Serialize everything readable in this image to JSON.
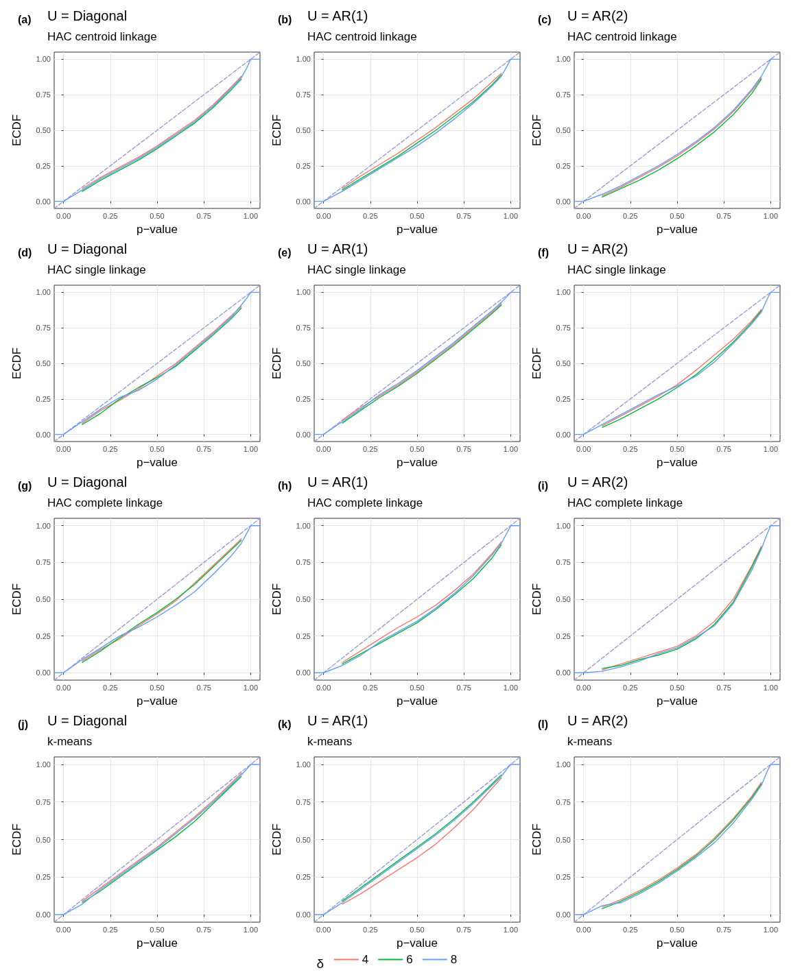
{
  "chart_data": [
    {
      "type": "line",
      "title": "U = Diagonal",
      "subtitle": "HAC centroid linkage",
      "annotations": [
        "(a)"
      ],
      "xlabel": "p−value",
      "ylabel": "ECDF",
      "xlim": [
        -0.05,
        1.05
      ],
      "ylim": [
        -0.05,
        1.05
      ],
      "xticks": [
        {
          "value": 0,
          "label": "0.00"
        },
        {
          "value": 0.25,
          "label": "0.25"
        },
        {
          "value": 0.5,
          "label": "0.50"
        },
        {
          "value": 0.75,
          "label": "0.75"
        },
        {
          "value": 1,
          "label": "1.00"
        }
      ],
      "yticks": [
        {
          "value": 0,
          "label": "0.00"
        },
        {
          "value": 0.25,
          "label": "0.25"
        },
        {
          "value": 0.5,
          "label": "0.50"
        },
        {
          "value": 0.75,
          "label": "0.75"
        },
        {
          "value": 1,
          "label": "1.00"
        }
      ],
      "grid": true,
      "marker": "none",
      "line_style": "solid",
      "x": [
        -0.05,
        0,
        0.1,
        0.2,
        0.3,
        0.4,
        0.5,
        0.6,
        0.7,
        0.8,
        0.9,
        0.95,
        0.98,
        1,
        1.05
      ],
      "series": [
        {
          "color": "#9999dd",
          "line_style": "dashed",
          "values": [
            -0.05,
            0,
            0.1,
            0.2,
            0.3,
            0.4,
            0.5,
            0.6,
            0.7,
            0.8,
            0.9,
            0.95,
            0.98,
            1,
            1.05
          ]
        },
        {
          "color": "#f8766d",
          "x": [
            0.1,
            0.2,
            0.3,
            0.4,
            0.5,
            0.6,
            0.7,
            0.8,
            0.9,
            0.95
          ],
          "values": [
            0.09,
            0.17,
            0.24,
            0.31,
            0.39,
            0.48,
            0.57,
            0.68,
            0.81,
            0.88
          ]
        },
        {
          "color": "#00ba38",
          "x": [
            0.1,
            0.2,
            0.3,
            0.4,
            0.5,
            0.6,
            0.7,
            0.8,
            0.9,
            0.95
          ],
          "values": [
            0.07,
            0.15,
            0.22,
            0.29,
            0.37,
            0.46,
            0.55,
            0.66,
            0.79,
            0.86
          ]
        },
        {
          "color": "#619cff",
          "values": [
            0,
            0,
            0.08,
            0.16,
            0.23,
            0.3,
            0.38,
            0.47,
            0.56,
            0.67,
            0.8,
            0.87,
            0.94,
            1,
            1
          ]
        }
      ]
    },
    {
      "type": "line",
      "title": "U = AR(1)",
      "subtitle": "HAC centroid linkage",
      "annotations": [
        "(b)"
      ],
      "xlabel": "p−value",
      "ylabel": "ECDF",
      "xlim": [
        -0.05,
        1.05
      ],
      "ylim": [
        -0.05,
        1.05
      ],
      "xticks": [
        {
          "value": 0,
          "label": "0.00"
        },
        {
          "value": 0.25,
          "label": "0.25"
        },
        {
          "value": 0.5,
          "label": "0.50"
        },
        {
          "value": 0.75,
          "label": "0.75"
        },
        {
          "value": 1,
          "label": "1.00"
        }
      ],
      "yticks": [
        {
          "value": 0,
          "label": "0.00"
        },
        {
          "value": 0.25,
          "label": "0.25"
        },
        {
          "value": 0.5,
          "label": "0.50"
        },
        {
          "value": 0.75,
          "label": "0.75"
        },
        {
          "value": 1,
          "label": "1.00"
        }
      ],
      "grid": true,
      "marker": "none",
      "line_style": "solid",
      "x": [
        -0.05,
        0,
        0.1,
        0.2,
        0.3,
        0.4,
        0.5,
        0.6,
        0.7,
        0.8,
        0.9,
        0.95,
        0.98,
        1,
        1.05
      ],
      "series": [
        {
          "color": "#9999dd",
          "line_style": "dashed",
          "values": [
            -0.05,
            0,
            0.1,
            0.2,
            0.3,
            0.4,
            0.5,
            0.6,
            0.7,
            0.8,
            0.9,
            0.95,
            0.98,
            1,
            1.05
          ]
        },
        {
          "color": "#f8766d",
          "x": [
            0.1,
            0.2,
            0.3,
            0.4,
            0.5,
            0.6,
            0.7,
            0.8,
            0.9,
            0.95
          ],
          "values": [
            0.09,
            0.18,
            0.26,
            0.34,
            0.43,
            0.52,
            0.62,
            0.72,
            0.84,
            0.9
          ]
        },
        {
          "color": "#00ba38",
          "x": [
            0.1,
            0.2,
            0.3,
            0.4,
            0.5,
            0.6,
            0.7,
            0.8,
            0.9,
            0.95
          ],
          "values": [
            0.08,
            0.16,
            0.24,
            0.32,
            0.41,
            0.5,
            0.6,
            0.7,
            0.82,
            0.89
          ]
        },
        {
          "color": "#619cff",
          "values": [
            0,
            0,
            0.07,
            0.15,
            0.23,
            0.31,
            0.39,
            0.48,
            0.58,
            0.69,
            0.81,
            0.88,
            0.95,
            1,
            1
          ]
        }
      ]
    },
    {
      "type": "line",
      "title": "U = AR(2)",
      "subtitle": "HAC centroid linkage",
      "annotations": [
        "(c)"
      ],
      "xlabel": "p−value",
      "ylabel": "ECDF",
      "xlim": [
        -0.05,
        1.05
      ],
      "ylim": [
        -0.05,
        1.05
      ],
      "xticks": [
        {
          "value": 0,
          "label": "0.00"
        },
        {
          "value": 0.25,
          "label": "0.25"
        },
        {
          "value": 0.5,
          "label": "0.50"
        },
        {
          "value": 0.75,
          "label": "0.75"
        },
        {
          "value": 1,
          "label": "1.00"
        }
      ],
      "yticks": [
        {
          "value": 0,
          "label": "0.00"
        },
        {
          "value": 0.25,
          "label": "0.25"
        },
        {
          "value": 0.5,
          "label": "0.50"
        },
        {
          "value": 0.75,
          "label": "0.75"
        },
        {
          "value": 1,
          "label": "1.00"
        }
      ],
      "grid": true,
      "marker": "none",
      "line_style": "solid",
      "x": [
        -0.05,
        0,
        0.1,
        0.2,
        0.3,
        0.4,
        0.5,
        0.6,
        0.7,
        0.8,
        0.9,
        0.95,
        0.98,
        1,
        1.05
      ],
      "series": [
        {
          "color": "#9999dd",
          "line_style": "dashed",
          "values": [
            -0.05,
            0,
            0.1,
            0.2,
            0.3,
            0.4,
            0.5,
            0.6,
            0.7,
            0.8,
            0.9,
            0.95,
            0.98,
            1,
            1.05
          ]
        },
        {
          "color": "#f8766d",
          "x": [
            0.1,
            0.2,
            0.3,
            0.4,
            0.5,
            0.6,
            0.7,
            0.8,
            0.9,
            0.95
          ],
          "values": [
            0.04,
            0.1,
            0.17,
            0.24,
            0.32,
            0.41,
            0.51,
            0.63,
            0.78,
            0.87
          ]
        },
        {
          "color": "#00ba38",
          "x": [
            0.1,
            0.2,
            0.3,
            0.4,
            0.5,
            0.6,
            0.7,
            0.8,
            0.9,
            0.95
          ],
          "values": [
            0.03,
            0.09,
            0.15,
            0.22,
            0.3,
            0.39,
            0.49,
            0.61,
            0.76,
            0.86
          ]
        },
        {
          "color": "#619cff",
          "values": [
            0,
            0,
            0.05,
            0.11,
            0.18,
            0.25,
            0.33,
            0.42,
            0.52,
            0.64,
            0.79,
            0.88,
            0.95,
            1,
            1
          ]
        }
      ]
    },
    {
      "type": "line",
      "title": "U = Diagonal",
      "subtitle": "HAC single linkage",
      "annotations": [
        "(d)"
      ],
      "xlabel": "p−value",
      "ylabel": "ECDF",
      "xlim": [
        -0.05,
        1.05
      ],
      "ylim": [
        -0.05,
        1.05
      ],
      "xticks": [
        {
          "value": 0,
          "label": "0.00"
        },
        {
          "value": 0.25,
          "label": "0.25"
        },
        {
          "value": 0.5,
          "label": "0.50"
        },
        {
          "value": 0.75,
          "label": "0.75"
        },
        {
          "value": 1,
          "label": "1.00"
        }
      ],
      "yticks": [
        {
          "value": 0,
          "label": "0.00"
        },
        {
          "value": 0.25,
          "label": "0.25"
        },
        {
          "value": 0.5,
          "label": "0.50"
        },
        {
          "value": 0.75,
          "label": "0.75"
        },
        {
          "value": 1,
          "label": "1.00"
        }
      ],
      "grid": true,
      "marker": "none",
      "line_style": "solid",
      "x": [
        -0.05,
        0,
        0.1,
        0.2,
        0.3,
        0.4,
        0.5,
        0.6,
        0.7,
        0.8,
        0.9,
        0.95,
        0.98,
        1,
        1.05
      ],
      "series": [
        {
          "color": "#9999dd",
          "line_style": "dashed",
          "values": [
            -0.05,
            0,
            0.1,
            0.2,
            0.3,
            0.4,
            0.5,
            0.6,
            0.7,
            0.8,
            0.9,
            0.95,
            0.98,
            1,
            1.05
          ]
        },
        {
          "color": "#f8766d",
          "x": [
            0.1,
            0.2,
            0.3,
            0.4,
            0.5,
            0.6,
            0.7,
            0.8,
            0.9,
            0.95
          ],
          "values": [
            0.08,
            0.17,
            0.24,
            0.32,
            0.41,
            0.5,
            0.61,
            0.72,
            0.84,
            0.9
          ]
        },
        {
          "color": "#00ba38",
          "x": [
            0.1,
            0.2,
            0.3,
            0.4,
            0.5,
            0.6,
            0.7,
            0.8,
            0.9,
            0.95
          ],
          "values": [
            0.07,
            0.15,
            0.25,
            0.33,
            0.4,
            0.48,
            0.59,
            0.7,
            0.82,
            0.89
          ]
        },
        {
          "color": "#619cff",
          "values": [
            0,
            0,
            0.09,
            0.18,
            0.26,
            0.31,
            0.39,
            0.49,
            0.6,
            0.71,
            0.83,
            0.91,
            0.96,
            1,
            1
          ]
        }
      ]
    },
    {
      "type": "line",
      "title": "U = AR(1)",
      "subtitle": "HAC single linkage",
      "annotations": [
        "(e)"
      ],
      "xlabel": "p−value",
      "ylabel": "ECDF",
      "xlim": [
        -0.05,
        1.05
      ],
      "ylim": [
        -0.05,
        1.05
      ],
      "xticks": [
        {
          "value": 0,
          "label": "0.00"
        },
        {
          "value": 0.25,
          "label": "0.25"
        },
        {
          "value": 0.5,
          "label": "0.50"
        },
        {
          "value": 0.75,
          "label": "0.75"
        },
        {
          "value": 1,
          "label": "1.00"
        }
      ],
      "yticks": [
        {
          "value": 0,
          "label": "0.00"
        },
        {
          "value": 0.25,
          "label": "0.25"
        },
        {
          "value": 0.5,
          "label": "0.50"
        },
        {
          "value": 0.75,
          "label": "0.75"
        },
        {
          "value": 1,
          "label": "1.00"
        }
      ],
      "grid": true,
      "marker": "none",
      "line_style": "solid",
      "x": [
        -0.05,
        0,
        0.1,
        0.2,
        0.3,
        0.4,
        0.5,
        0.6,
        0.7,
        0.8,
        0.9,
        0.95,
        0.98,
        1,
        1.05
      ],
      "series": [
        {
          "color": "#9999dd",
          "line_style": "dashed",
          "values": [
            -0.05,
            0,
            0.1,
            0.2,
            0.3,
            0.4,
            0.5,
            0.6,
            0.7,
            0.8,
            0.9,
            0.95,
            0.98,
            1,
            1.05
          ]
        },
        {
          "color": "#f8766d",
          "x": [
            0.1,
            0.2,
            0.3,
            0.4,
            0.5,
            0.6,
            0.7,
            0.8,
            0.9,
            0.95
          ],
          "values": [
            0.1,
            0.19,
            0.27,
            0.35,
            0.44,
            0.54,
            0.64,
            0.75,
            0.86,
            0.92
          ]
        },
        {
          "color": "#00ba38",
          "x": [
            0.1,
            0.2,
            0.3,
            0.4,
            0.5,
            0.6,
            0.7,
            0.8,
            0.9,
            0.95
          ],
          "values": [
            0.08,
            0.17,
            0.26,
            0.34,
            0.43,
            0.53,
            0.63,
            0.74,
            0.85,
            0.91
          ]
        },
        {
          "color": "#619cff",
          "values": [
            0,
            0,
            0.09,
            0.18,
            0.28,
            0.36,
            0.45,
            0.55,
            0.65,
            0.76,
            0.87,
            0.93,
            0.97,
            1,
            1
          ]
        }
      ]
    },
    {
      "type": "line",
      "title": "U = AR(2)",
      "subtitle": "HAC single linkage",
      "annotations": [
        "(f)"
      ],
      "xlabel": "p−value",
      "ylabel": "ECDF",
      "xlim": [
        -0.05,
        1.05
      ],
      "ylim": [
        -0.05,
        1.05
      ],
      "xticks": [
        {
          "value": 0,
          "label": "0.00"
        },
        {
          "value": 0.25,
          "label": "0.25"
        },
        {
          "value": 0.5,
          "label": "0.50"
        },
        {
          "value": 0.75,
          "label": "0.75"
        },
        {
          "value": 1,
          "label": "1.00"
        }
      ],
      "yticks": [
        {
          "value": 0,
          "label": "0.00"
        },
        {
          "value": 0.25,
          "label": "0.25"
        },
        {
          "value": 0.5,
          "label": "0.50"
        },
        {
          "value": 0.75,
          "label": "0.75"
        },
        {
          "value": 1,
          "label": "1.00"
        }
      ],
      "grid": true,
      "marker": "none",
      "line_style": "solid",
      "x": [
        -0.05,
        0,
        0.1,
        0.2,
        0.3,
        0.4,
        0.5,
        0.6,
        0.7,
        0.8,
        0.9,
        0.95,
        0.98,
        1,
        1.05
      ],
      "series": [
        {
          "color": "#9999dd",
          "line_style": "dashed",
          "values": [
            -0.05,
            0,
            0.1,
            0.2,
            0.3,
            0.4,
            0.5,
            0.6,
            0.7,
            0.8,
            0.9,
            0.95,
            0.98,
            1,
            1.05
          ]
        },
        {
          "color": "#f8766d",
          "x": [
            0.1,
            0.2,
            0.3,
            0.4,
            0.5,
            0.6,
            0.7,
            0.8,
            0.9,
            0.95
          ],
          "values": [
            0.06,
            0.13,
            0.2,
            0.27,
            0.35,
            0.45,
            0.56,
            0.67,
            0.8,
            0.88
          ]
        },
        {
          "color": "#00ba38",
          "x": [
            0.1,
            0.2,
            0.3,
            0.4,
            0.5,
            0.6,
            0.7,
            0.8,
            0.9,
            0.95
          ],
          "values": [
            0.05,
            0.11,
            0.18,
            0.25,
            0.33,
            0.42,
            0.53,
            0.65,
            0.79,
            0.87
          ]
        },
        {
          "color": "#619cff",
          "values": [
            0,
            0,
            0.07,
            0.14,
            0.21,
            0.28,
            0.34,
            0.41,
            0.51,
            0.64,
            0.78,
            0.86,
            0.95,
            1,
            1
          ]
        }
      ]
    },
    {
      "type": "line",
      "title": "U = Diagonal",
      "subtitle": "HAC complete linkage",
      "annotations": [
        "(g)"
      ],
      "xlabel": "p−value",
      "ylabel": "ECDF",
      "xlim": [
        -0.05,
        1.05
      ],
      "ylim": [
        -0.05,
        1.05
      ],
      "xticks": [
        {
          "value": 0,
          "label": "0.00"
        },
        {
          "value": 0.25,
          "label": "0.25"
        },
        {
          "value": 0.5,
          "label": "0.50"
        },
        {
          "value": 0.75,
          "label": "0.75"
        },
        {
          "value": 1,
          "label": "1.00"
        }
      ],
      "yticks": [
        {
          "value": 0,
          "label": "0.00"
        },
        {
          "value": 0.25,
          "label": "0.25"
        },
        {
          "value": 0.5,
          "label": "0.50"
        },
        {
          "value": 0.75,
          "label": "0.75"
        },
        {
          "value": 1,
          "label": "1.00"
        }
      ],
      "grid": true,
      "marker": "none",
      "line_style": "solid",
      "x": [
        -0.05,
        0,
        0.1,
        0.2,
        0.3,
        0.4,
        0.5,
        0.6,
        0.7,
        0.8,
        0.9,
        0.95,
        0.98,
        1,
        1.05
      ],
      "series": [
        {
          "color": "#9999dd",
          "line_style": "dashed",
          "values": [
            -0.05,
            0,
            0.1,
            0.2,
            0.3,
            0.4,
            0.5,
            0.6,
            0.7,
            0.8,
            0.9,
            0.95,
            0.98,
            1,
            1.05
          ]
        },
        {
          "color": "#f8766d",
          "x": [
            0.1,
            0.2,
            0.3,
            0.4,
            0.5,
            0.6,
            0.7,
            0.8,
            0.9,
            0.95
          ],
          "values": [
            0.08,
            0.16,
            0.23,
            0.32,
            0.4,
            0.49,
            0.61,
            0.73,
            0.85,
            0.91
          ]
        },
        {
          "color": "#00ba38",
          "x": [
            0.1,
            0.2,
            0.3,
            0.4,
            0.5,
            0.6,
            0.7,
            0.8,
            0.9,
            0.95
          ],
          "values": [
            0.07,
            0.15,
            0.24,
            0.33,
            0.41,
            0.5,
            0.6,
            0.72,
            0.84,
            0.9
          ]
        },
        {
          "color": "#619cff",
          "values": [
            0,
            0,
            0.09,
            0.17,
            0.25,
            0.31,
            0.38,
            0.46,
            0.55,
            0.67,
            0.8,
            0.88,
            0.95,
            1,
            1
          ]
        }
      ]
    },
    {
      "type": "line",
      "title": "U = AR(1)",
      "subtitle": "HAC complete linkage",
      "annotations": [
        "(h)"
      ],
      "xlabel": "p−value",
      "ylabel": "ECDF",
      "xlim": [
        -0.05,
        1.05
      ],
      "ylim": [
        -0.05,
        1.05
      ],
      "xticks": [
        {
          "value": 0,
          "label": "0.00"
        },
        {
          "value": 0.25,
          "label": "0.25"
        },
        {
          "value": 0.5,
          "label": "0.50"
        },
        {
          "value": 0.75,
          "label": "0.75"
        },
        {
          "value": 1,
          "label": "1.00"
        }
      ],
      "yticks": [
        {
          "value": 0,
          "label": "0.00"
        },
        {
          "value": 0.25,
          "label": "0.25"
        },
        {
          "value": 0.5,
          "label": "0.50"
        },
        {
          "value": 0.75,
          "label": "0.75"
        },
        {
          "value": 1,
          "label": "1.00"
        }
      ],
      "grid": true,
      "marker": "none",
      "line_style": "solid",
      "x": [
        -0.05,
        0,
        0.1,
        0.2,
        0.3,
        0.4,
        0.5,
        0.6,
        0.7,
        0.8,
        0.9,
        0.95,
        0.98,
        1,
        1.05
      ],
      "series": [
        {
          "color": "#9999dd",
          "line_style": "dashed",
          "values": [
            -0.05,
            0,
            0.1,
            0.2,
            0.3,
            0.4,
            0.5,
            0.6,
            0.7,
            0.8,
            0.9,
            0.95,
            0.98,
            1,
            1.05
          ]
        },
        {
          "color": "#f8766d",
          "x": [
            0.1,
            0.2,
            0.3,
            0.4,
            0.5,
            0.6,
            0.7,
            0.8,
            0.9,
            0.95
          ],
          "values": [
            0.07,
            0.15,
            0.23,
            0.31,
            0.38,
            0.46,
            0.56,
            0.67,
            0.81,
            0.89
          ]
        },
        {
          "color": "#00ba38",
          "x": [
            0.1,
            0.2,
            0.3,
            0.4,
            0.5,
            0.6,
            0.7,
            0.8,
            0.9,
            0.95
          ],
          "values": [
            0.06,
            0.13,
            0.2,
            0.27,
            0.34,
            0.43,
            0.53,
            0.64,
            0.78,
            0.87
          ]
        },
        {
          "color": "#619cff",
          "values": [
            0,
            0,
            0.05,
            0.12,
            0.21,
            0.28,
            0.35,
            0.44,
            0.54,
            0.66,
            0.8,
            0.88,
            0.95,
            1,
            1
          ]
        }
      ]
    },
    {
      "type": "line",
      "title": "U = AR(2)",
      "subtitle": "HAC complete linkage",
      "annotations": [
        "(i)"
      ],
      "xlabel": "p−value",
      "ylabel": "ECDF",
      "xlim": [
        -0.05,
        1.05
      ],
      "ylim": [
        -0.05,
        1.05
      ],
      "xticks": [
        {
          "value": 0,
          "label": "0.00"
        },
        {
          "value": 0.25,
          "label": "0.25"
        },
        {
          "value": 0.5,
          "label": "0.50"
        },
        {
          "value": 0.75,
          "label": "0.75"
        },
        {
          "value": 1,
          "label": "1.00"
        }
      ],
      "yticks": [
        {
          "value": 0,
          "label": "0.00"
        },
        {
          "value": 0.25,
          "label": "0.25"
        },
        {
          "value": 0.5,
          "label": "0.50"
        },
        {
          "value": 0.75,
          "label": "0.75"
        },
        {
          "value": 1,
          "label": "1.00"
        }
      ],
      "grid": true,
      "marker": "none",
      "line_style": "solid",
      "x": [
        -0.05,
        0,
        0.1,
        0.2,
        0.3,
        0.4,
        0.5,
        0.6,
        0.7,
        0.8,
        0.9,
        0.95,
        0.98,
        1,
        1.05
      ],
      "series": [
        {
          "color": "#9999dd",
          "line_style": "dashed",
          "values": [
            -0.05,
            0,
            0.1,
            0.2,
            0.3,
            0.4,
            0.5,
            0.6,
            0.7,
            0.8,
            0.9,
            0.95,
            0.98,
            1,
            1.05
          ]
        },
        {
          "color": "#f8766d",
          "x": [
            0.1,
            0.2,
            0.3,
            0.4,
            0.5,
            0.6,
            0.7,
            0.8,
            0.9,
            0.95
          ],
          "values": [
            0.02,
            0.06,
            0.1,
            0.14,
            0.18,
            0.25,
            0.35,
            0.5,
            0.73,
            0.86
          ]
        },
        {
          "color": "#00ba38",
          "x": [
            0.1,
            0.2,
            0.3,
            0.4,
            0.5,
            0.6,
            0.7,
            0.8,
            0.9,
            0.95
          ],
          "values": [
            0.03,
            0.05,
            0.09,
            0.12,
            0.16,
            0.23,
            0.33,
            0.48,
            0.72,
            0.85
          ]
        },
        {
          "color": "#619cff",
          "values": [
            0,
            0,
            0.01,
            0.04,
            0.08,
            0.13,
            0.17,
            0.24,
            0.32,
            0.47,
            0.7,
            0.84,
            0.94,
            1,
            1
          ]
        }
      ]
    },
    {
      "type": "line",
      "title": "U = Diagonal",
      "subtitle": "k-means",
      "annotations": [
        "(j)"
      ],
      "xlabel": "p−value",
      "ylabel": "ECDF",
      "xlim": [
        -0.05,
        1.05
      ],
      "ylim": [
        -0.05,
        1.05
      ],
      "xticks": [
        {
          "value": 0,
          "label": "0.00"
        },
        {
          "value": 0.25,
          "label": "0.25"
        },
        {
          "value": 0.5,
          "label": "0.50"
        },
        {
          "value": 0.75,
          "label": "0.75"
        },
        {
          "value": 1,
          "label": "1.00"
        }
      ],
      "yticks": [
        {
          "value": 0,
          "label": "0.00"
        },
        {
          "value": 0.25,
          "label": "0.25"
        },
        {
          "value": 0.5,
          "label": "0.50"
        },
        {
          "value": 0.75,
          "label": "0.75"
        },
        {
          "value": 1,
          "label": "1.00"
        }
      ],
      "grid": true,
      "marker": "none",
      "line_style": "solid",
      "x": [
        -0.05,
        0,
        0.1,
        0.2,
        0.3,
        0.4,
        0.5,
        0.6,
        0.7,
        0.8,
        0.9,
        0.95,
        0.98,
        1,
        1.05
      ],
      "series": [
        {
          "color": "#9999dd",
          "line_style": "dashed",
          "values": [
            -0.05,
            0,
            0.1,
            0.2,
            0.3,
            0.4,
            0.5,
            0.6,
            0.7,
            0.8,
            0.9,
            0.95,
            0.98,
            1,
            1.05
          ]
        },
        {
          "color": "#f8766d",
          "x": [
            0.1,
            0.2,
            0.3,
            0.4,
            0.5,
            0.6,
            0.7,
            0.8,
            0.9,
            0.95
          ],
          "values": [
            0.09,
            0.18,
            0.27,
            0.36,
            0.45,
            0.55,
            0.65,
            0.76,
            0.88,
            0.94
          ]
        },
        {
          "color": "#00ba38",
          "x": [
            0.1,
            0.2,
            0.3,
            0.4,
            0.5,
            0.6,
            0.7,
            0.8,
            0.9,
            0.95
          ],
          "values": [
            0.08,
            0.16,
            0.25,
            0.34,
            0.43,
            0.52,
            0.62,
            0.74,
            0.86,
            0.92
          ]
        },
        {
          "color": "#619cff",
          "values": [
            0,
            0,
            0.07,
            0.17,
            0.26,
            0.35,
            0.44,
            0.54,
            0.64,
            0.75,
            0.87,
            0.93,
            0.97,
            1,
            1
          ]
        }
      ]
    },
    {
      "type": "line",
      "title": "U = AR(1)",
      "subtitle": "k-means",
      "annotations": [
        "(k)"
      ],
      "xlabel": "p−value",
      "ylabel": "ECDF",
      "xlim": [
        -0.05,
        1.05
      ],
      "ylim": [
        -0.05,
        1.05
      ],
      "xticks": [
        {
          "value": 0,
          "label": "0.00"
        },
        {
          "value": 0.25,
          "label": "0.25"
        },
        {
          "value": 0.5,
          "label": "0.50"
        },
        {
          "value": 0.75,
          "label": "0.75"
        },
        {
          "value": 1,
          "label": "1.00"
        }
      ],
      "yticks": [
        {
          "value": 0,
          "label": "0.00"
        },
        {
          "value": 0.25,
          "label": "0.25"
        },
        {
          "value": 0.5,
          "label": "0.50"
        },
        {
          "value": 0.75,
          "label": "0.75"
        },
        {
          "value": 1,
          "label": "1.00"
        }
      ],
      "grid": true,
      "marker": "none",
      "line_style": "solid",
      "legend": "bottom",
      "legend_title": "δ",
      "x": [
        -0.05,
        0,
        0.1,
        0.2,
        0.3,
        0.4,
        0.5,
        0.6,
        0.7,
        0.8,
        0.9,
        0.95,
        0.98,
        1,
        1.05
      ],
      "series": [
        {
          "color": "#9999dd",
          "line_style": "dashed",
          "values": [
            -0.05,
            0,
            0.1,
            0.2,
            0.3,
            0.4,
            0.5,
            0.6,
            0.7,
            0.8,
            0.9,
            0.95,
            0.98,
            1,
            1.05
          ]
        },
        {
          "name": "4",
          "color": "#f8766d",
          "x": [
            0.1,
            0.2,
            0.3,
            0.4,
            0.5,
            0.6,
            0.7,
            0.8,
            0.9,
            0.95
          ],
          "values": [
            0.07,
            0.14,
            0.22,
            0.3,
            0.38,
            0.47,
            0.58,
            0.7,
            0.84,
            0.91
          ]
        },
        {
          "name": "6",
          "color": "#00ba38",
          "x": [
            0.1,
            0.2,
            0.3,
            0.4,
            0.5,
            0.6,
            0.7,
            0.8,
            0.9,
            0.95
          ],
          "values": [
            0.09,
            0.18,
            0.27,
            0.36,
            0.45,
            0.54,
            0.64,
            0.75,
            0.87,
            0.93
          ]
        },
        {
          "name": "8",
          "color": "#619cff",
          "values": [
            0,
            0,
            0.08,
            0.17,
            0.26,
            0.35,
            0.44,
            0.53,
            0.63,
            0.74,
            0.86,
            0.92,
            0.97,
            1,
            1
          ]
        }
      ]
    },
    {
      "type": "line",
      "title": "U = AR(2)",
      "subtitle": "k-means",
      "annotations": [
        "(l)"
      ],
      "xlabel": "p−value",
      "ylabel": "ECDF",
      "xlim": [
        -0.05,
        1.05
      ],
      "ylim": [
        -0.05,
        1.05
      ],
      "xticks": [
        {
          "value": 0,
          "label": "0.00"
        },
        {
          "value": 0.25,
          "label": "0.25"
        },
        {
          "value": 0.5,
          "label": "0.50"
        },
        {
          "value": 0.75,
          "label": "0.75"
        },
        {
          "value": 1,
          "label": "1.00"
        }
      ],
      "yticks": [
        {
          "value": 0,
          "label": "0.00"
        },
        {
          "value": 0.25,
          "label": "0.25"
        },
        {
          "value": 0.5,
          "label": "0.50"
        },
        {
          "value": 0.75,
          "label": "0.75"
        },
        {
          "value": 1,
          "label": "1.00"
        }
      ],
      "grid": true,
      "marker": "none",
      "line_style": "solid",
      "x": [
        -0.05,
        0,
        0.1,
        0.2,
        0.3,
        0.4,
        0.5,
        0.6,
        0.7,
        0.8,
        0.9,
        0.95,
        0.98,
        1,
        1.05
      ],
      "series": [
        {
          "color": "#9999dd",
          "line_style": "dashed",
          "values": [
            -0.05,
            0,
            0.1,
            0.2,
            0.3,
            0.4,
            0.5,
            0.6,
            0.7,
            0.8,
            0.9,
            0.95,
            0.98,
            1,
            1.05
          ]
        },
        {
          "color": "#f8766d",
          "x": [
            0.1,
            0.2,
            0.3,
            0.4,
            0.5,
            0.6,
            0.7,
            0.8,
            0.9,
            0.95
          ],
          "values": [
            0.05,
            0.1,
            0.16,
            0.23,
            0.31,
            0.4,
            0.51,
            0.64,
            0.79,
            0.88
          ]
        },
        {
          "color": "#00ba38",
          "x": [
            0.1,
            0.2,
            0.3,
            0.4,
            0.5,
            0.6,
            0.7,
            0.8,
            0.9,
            0.95
          ],
          "values": [
            0.04,
            0.09,
            0.15,
            0.22,
            0.3,
            0.39,
            0.5,
            0.63,
            0.78,
            0.87
          ]
        },
        {
          "color": "#619cff",
          "values": [
            0,
            0,
            0.06,
            0.08,
            0.14,
            0.21,
            0.29,
            0.38,
            0.48,
            0.61,
            0.77,
            0.86,
            0.95,
            1,
            1
          ]
        }
      ]
    }
  ]
}
